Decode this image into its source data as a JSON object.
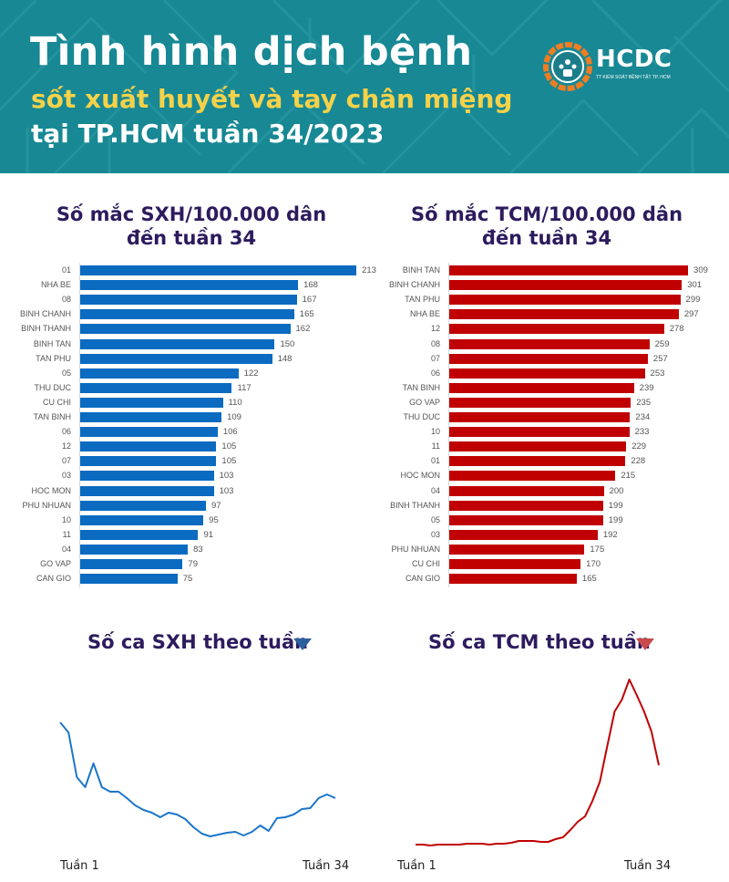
{
  "header": {
    "title_line1": "Tình hình dịch bệnh",
    "title_line2": "sốt xuất huyết và tay chân miệng",
    "title_line3": "tại TP.HCM tuần 34/2023",
    "logo_text": "HCDC",
    "logo_subtext": "TT KIỂM SOÁT BỆNH TẬT TP. HCM",
    "colors": {
      "background": "#178894",
      "title": "#ffffff",
      "subtitle": "#f4d24a",
      "logo_ring": "#f07d22"
    }
  },
  "sections": {
    "sxh_bar_title_line1": "Số mắc SXH/100.000 dân",
    "sxh_bar_title_line2": "đến tuần 34",
    "tcm_bar_title_line1": "Số mắc TCM/100.000 dân",
    "tcm_bar_title_line2": "đến tuần 34",
    "sxh_line_title": "Số ca SXH theo tuần",
    "tcm_line_title": "Số ca TCM theo tuần",
    "sxh_line_x_start": "Tuần 1",
    "sxh_line_x_end": "Tuần 34",
    "tcm_line_x_start": "Tuần 1",
    "tcm_line_x_end": "Tuần 34",
    "sxh_trend_icon": "triangle-down-icon",
    "tcm_trend_icon": "triangle-down-icon"
  },
  "chart_data": [
    {
      "type": "bar",
      "orientation": "horizontal",
      "title": "Số mắc SXH/100.000 dân đến tuần 34",
      "xlabel": "",
      "ylabel": "",
      "color": "#0a6bc1",
      "categories": [
        "01",
        "NHA BE",
        "08",
        "BINH CHANH",
        "BINH THANH",
        "BINH TAN",
        "TAN PHU",
        "05",
        "THU DUC",
        "CU CHI",
        "TAN BINH",
        "06",
        "12",
        "07",
        "03",
        "HOC MON",
        "PHU NHUAN",
        "10",
        "11",
        "04",
        "GO VAP",
        "CAN GIO"
      ],
      "values": [
        213,
        168,
        167,
        165,
        162,
        150,
        148,
        122,
        117,
        110,
        109,
        106,
        105,
        105,
        103,
        103,
        97,
        95,
        91,
        83,
        79,
        75
      ],
      "data_labels": true,
      "grid": false
    },
    {
      "type": "bar",
      "orientation": "horizontal",
      "title": "Số mắc TCM/100.000 dân đến tuần 34",
      "xlabel": "",
      "ylabel": "",
      "color": "#c00000",
      "categories": [
        "BINH TAN",
        "BINH CHANH",
        "TAN PHU",
        "NHA BE",
        "12",
        "08",
        "07",
        "06",
        "TAN BINH",
        "GO VAP",
        "THU DUC",
        "10",
        "11",
        "01",
        "HOC MON",
        "04",
        "BINH THANH",
        "05",
        "03",
        "PHU NHUAN",
        "CU CHI",
        "CAN GIO"
      ],
      "values": [
        309,
        301,
        299,
        297,
        278,
        259,
        257,
        253,
        239,
        235,
        234,
        233,
        229,
        228,
        215,
        200,
        199,
        199,
        192,
        175,
        170,
        165
      ],
      "data_labels": true,
      "grid": false
    },
    {
      "type": "line",
      "title": "Số ca SXH theo tuần",
      "color": "#1b75c9",
      "x_tick_labels": [
        "Tuần 1",
        "Tuần 34"
      ],
      "x": [
        1,
        2,
        3,
        4,
        5,
        6,
        7,
        8,
        9,
        10,
        11,
        12,
        13,
        14,
        15,
        16,
        17,
        18,
        19,
        20,
        21,
        22,
        23,
        24,
        25,
        26,
        27,
        28,
        29,
        30,
        31,
        32,
        33,
        34
      ],
      "values_relative": [
        138,
        127,
        78,
        67,
        93,
        67,
        62,
        62,
        55,
        47,
        42,
        39,
        34,
        39,
        37,
        32,
        23,
        16,
        13,
        15,
        17,
        18,
        14,
        18,
        25,
        19,
        33,
        34,
        37,
        43,
        44,
        55,
        59,
        55
      ],
      "note": "relative index read from line height; no y-axis shown",
      "grid": false,
      "y_axis_visible": false
    },
    {
      "type": "line",
      "title": "Số ca TCM theo tuần",
      "color": "#c00000",
      "x_tick_labels": [
        "Tuần 1",
        "Tuần 34"
      ],
      "x": [
        1,
        2,
        3,
        4,
        5,
        6,
        7,
        8,
        9,
        10,
        11,
        12,
        13,
        14,
        15,
        16,
        17,
        18,
        19,
        20,
        21,
        22,
        23,
        24,
        25,
        26,
        27,
        28,
        29,
        30,
        31,
        32,
        33,
        34
      ],
      "values_relative": [
        4,
        4,
        3,
        4,
        4,
        4,
        4,
        5,
        5,
        5,
        4,
        5,
        5,
        6,
        8,
        8,
        8,
        7,
        7,
        10,
        12,
        20,
        29,
        35,
        52,
        73,
        112,
        150,
        163,
        185,
        168,
        150,
        128,
        91
      ],
      "note": "relative index read from line height; no y-axis shown",
      "grid": false,
      "y_axis_visible": false
    }
  ]
}
